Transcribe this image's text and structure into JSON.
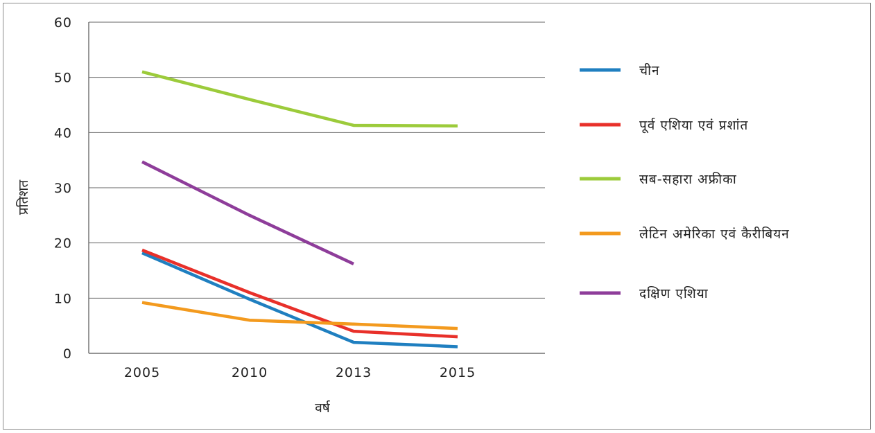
{
  "chart_data": {
    "type": "line",
    "title": "",
    "xlabel": "वर्ष",
    "ylabel": "प्रतिशत",
    "ylim": [
      0,
      60
    ],
    "yticks": [
      "0",
      "10",
      "20",
      "30",
      "40",
      "50",
      "60"
    ],
    "categories": [
      "2005",
      "2010",
      "2013",
      "2015"
    ],
    "grid": true,
    "legend_position": "right",
    "series": [
      {
        "name": "चीन",
        "color": "#1f7fc0",
        "values": [
          18.2,
          9.8,
          2.0,
          1.2
        ]
      },
      {
        "name": "पूर्व एशिया एवं प्रशांत",
        "color": "#e8302a",
        "values": [
          18.7,
          11.0,
          4.0,
          3.0
        ]
      },
      {
        "name": "सब-सहारा अफ्रीका",
        "color": "#9ccb3b",
        "values": [
          51.0,
          46.0,
          41.3,
          41.2
        ]
      },
      {
        "name": "लेटिन अमेरिका एवं कैरीबियन",
        "color": "#f39a1e",
        "values": [
          9.2,
          6.0,
          5.3,
          4.5
        ]
      },
      {
        "name": "दक्षिण एशिया",
        "color": "#8e3d9a",
        "values": [
          34.7,
          25.0,
          16.2,
          null
        ]
      }
    ]
  }
}
